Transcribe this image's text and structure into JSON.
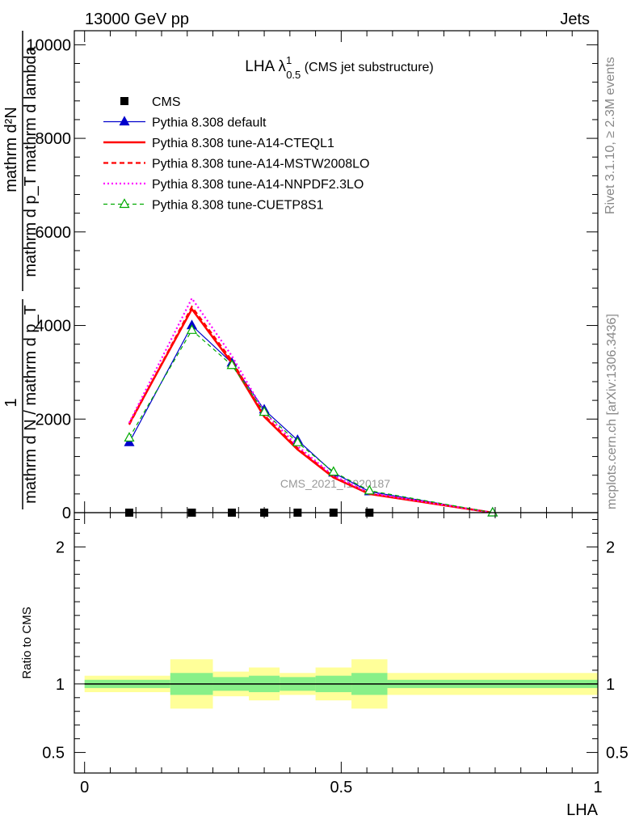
{
  "header": {
    "energy_label": "13000 GeV pp",
    "category_label": "Jets"
  },
  "plot_title": {
    "prefix": "LHA λ",
    "superscript": "1",
    "subscript": "0.5",
    "suffix": " (CMS jet substructure)"
  },
  "side_labels": {
    "rivet": "Rivet 3.1.10, ≥ 2.3M events",
    "mcplots": "mcplots.cern.ch [arXiv:1306.3436]"
  },
  "watermark": "CMS_2021_I1920187",
  "ylabel_main": {
    "numerator_one": "1",
    "denominator": "mathrm d N / mathrm d p_T",
    "fraction_num": "mathrm d²N",
    "fraction_den": "mathrm d p_T mathrm d lambda"
  },
  "ratio_ylabel": "Ratio to CMS",
  "chart_data": [
    {
      "type": "line",
      "xlabel": "LHA",
      "xlim": [
        -0.02,
        1.0
      ],
      "ylim": [
        0,
        10300
      ],
      "ytick_labels": [
        "0",
        "2000",
        "4000",
        "6000",
        "8000",
        "10000"
      ],
      "ytick_values": [
        0,
        2000,
        4000,
        6000,
        8000,
        10000
      ],
      "series": [
        {
          "name": "CMS",
          "color": "#000000",
          "style": "data",
          "x": [
            0.087,
            0.209,
            0.287,
            0.35,
            0.415,
            0.485,
            0.555
          ],
          "y": [
            0,
            0,
            0,
            0,
            0,
            0,
            0
          ]
        },
        {
          "name": "Pythia 8.308 default",
          "color": "#0000cc",
          "style": "solid-thin",
          "marker": "triangle-filled",
          "x": [
            0.087,
            0.209,
            0.287,
            0.35,
            0.415,
            0.485,
            0.555,
            0.795
          ],
          "y": [
            1500,
            4000,
            3200,
            2200,
            1550,
            850,
            450,
            0
          ]
        },
        {
          "name": "Pythia 8.308 tune-A14-CTEQL1",
          "color": "#ff0000",
          "style": "solid-thick",
          "x": [
            0.087,
            0.209,
            0.287,
            0.35,
            0.415,
            0.485,
            0.555,
            0.795
          ],
          "y": [
            1900,
            4350,
            3200,
            2050,
            1350,
            750,
            400,
            0
          ]
        },
        {
          "name": "Pythia 8.308 tune-A14-MSTW2008LO",
          "color": "#ff0000",
          "style": "dashed",
          "x": [
            0.087,
            0.209,
            0.287,
            0.35,
            0.415,
            0.485,
            0.555,
            0.795
          ],
          "y": [
            1880,
            4400,
            3250,
            2080,
            1380,
            770,
            410,
            0
          ]
        },
        {
          "name": "Pythia 8.308 tune-A14-NNPDF2.3LO",
          "color": "#ff00ff",
          "style": "dotted",
          "x": [
            0.087,
            0.209,
            0.287,
            0.35,
            0.415,
            0.485,
            0.555,
            0.795
          ],
          "y": [
            1920,
            4580,
            3350,
            2150,
            1420,
            790,
            420,
            0
          ]
        },
        {
          "name": "Pythia 8.308 tune-CUETP8S1",
          "color": "#00aa00",
          "style": "dashed-thin",
          "marker": "triangle-open",
          "x": [
            0.087,
            0.209,
            0.287,
            0.35,
            0.415,
            0.485,
            0.555,
            0.795
          ],
          "y": [
            1600,
            3900,
            3150,
            2150,
            1500,
            870,
            470,
            0
          ]
        }
      ],
      "legend_placement": "top-left"
    },
    {
      "type": "area",
      "xlabel": "LHA",
      "ylabel": "Ratio to CMS",
      "xlim": [
        -0.02,
        1.0
      ],
      "ylim": [
        0.35,
        2.25
      ],
      "ytick_labels": [
        "0.5",
        "1",
        "2"
      ],
      "ytick_values": [
        0.5,
        1,
        2
      ],
      "xtick_labels": [
        "0",
        "0.5",
        "1"
      ],
      "xtick_values": [
        0,
        0.5,
        1
      ],
      "reference_line": 1,
      "bins": [
        {
          "x0": 0.0,
          "x1": 0.167,
          "inner": 0.03,
          "outer": 0.06
        },
        {
          "x0": 0.167,
          "x1": 0.25,
          "inner": 0.08,
          "outer": 0.18
        },
        {
          "x0": 0.25,
          "x1": 0.32,
          "inner": 0.05,
          "outer": 0.09
        },
        {
          "x0": 0.32,
          "x1": 0.38,
          "inner": 0.06,
          "outer": 0.12
        },
        {
          "x0": 0.38,
          "x1": 0.45,
          "inner": 0.05,
          "outer": 0.08
        },
        {
          "x0": 0.45,
          "x1": 0.52,
          "inner": 0.06,
          "outer": 0.12
        },
        {
          "x0": 0.52,
          "x1": 0.59,
          "inner": 0.08,
          "outer": 0.18
        },
        {
          "x0": 0.59,
          "x1": 1.0,
          "inner": 0.03,
          "outer": 0.08
        }
      ],
      "band_colors": {
        "inner": "#88f088",
        "outer": "#ffff99"
      }
    }
  ]
}
